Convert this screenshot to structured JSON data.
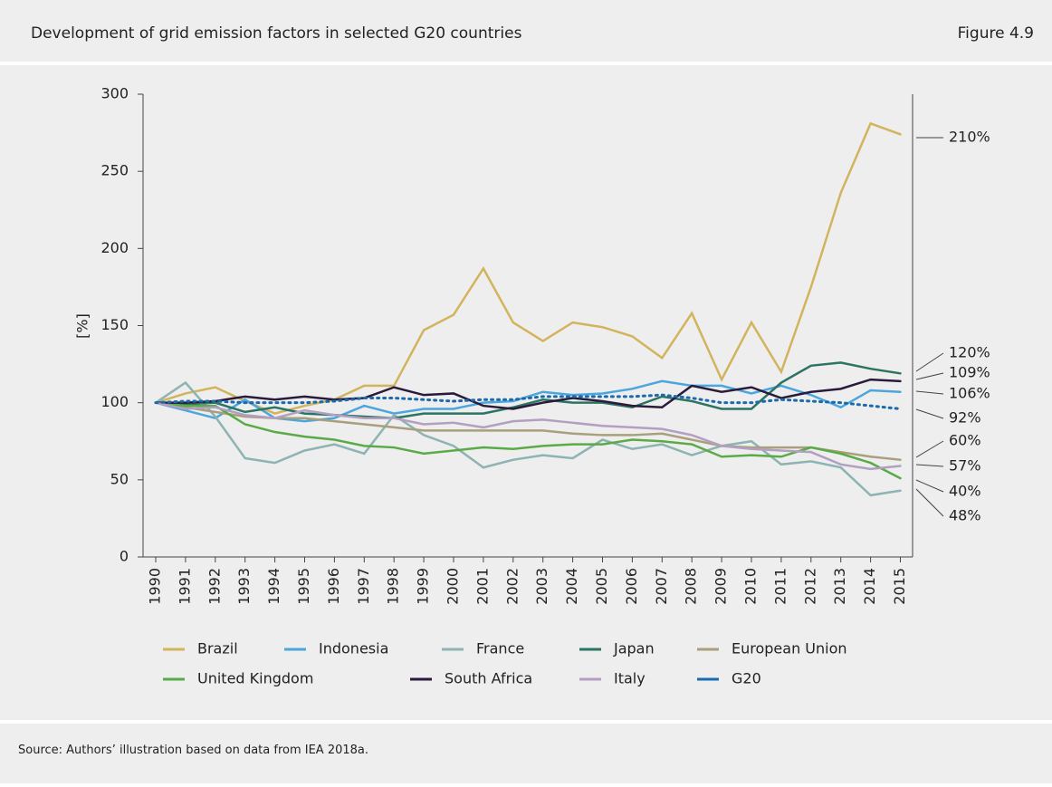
{
  "chart_data": {
    "type": "line",
    "title": "Development of grid emission factors in selected G20 countries",
    "figure_label": "Figure 4.9",
    "y_label": "[%]",
    "source": "Source: Authors’ illustration based on data from IEA 2018a.",
    "categories": [
      "1990",
      "1991",
      "1992",
      "1993",
      "1994",
      "1995",
      "1996",
      "1997",
      "1998",
      "1999",
      "2000",
      "2001",
      "2002",
      "2003",
      "2004",
      "2005",
      "2006",
      "2007",
      "2008",
      "2009",
      "2010",
      "2011",
      "2012",
      "2013",
      "2014",
      "2015"
    ],
    "ylim": [
      0,
      300
    ],
    "yticks": [
      0,
      50,
      100,
      150,
      200,
      250,
      300
    ],
    "annotations": [
      "210%",
      "120%",
      "109%",
      "106%",
      "92%",
      "60%",
      "57%",
      "40%",
      "48%"
    ],
    "series": [
      {
        "name": "Brazil",
        "color": "#d2b45c",
        "values": [
          100,
          106,
          110,
          101,
          93,
          98,
          102,
          111,
          111,
          147,
          157,
          187,
          152,
          140,
          152,
          149,
          143,
          129,
          158,
          115,
          152,
          120,
          175,
          236,
          281,
          274
        ]
      },
      {
        "name": "Indonesia",
        "color": "#4ba6dd",
        "values": [
          100,
          95,
          90,
          102,
          90,
          88,
          90,
          98,
          93,
          96,
          96,
          100,
          101,
          107,
          105,
          106,
          109,
          114,
          111,
          111,
          106,
          111,
          105,
          97,
          108,
          107
        ]
      },
      {
        "name": "France",
        "color": "#8db3b3",
        "values": [
          100,
          113,
          91,
          64,
          61,
          69,
          73,
          67,
          92,
          79,
          72,
          58,
          63,
          66,
          64,
          76,
          70,
          73,
          66,
          72,
          75,
          60,
          62,
          58,
          40,
          43
        ]
      },
      {
        "name": "Japan",
        "color": "#2b7462",
        "values": [
          100,
          99,
          100,
          94,
          97,
          93,
          92,
          91,
          90,
          93,
          93,
          93,
          97,
          102,
          100,
          100,
          97,
          104,
          101,
          96,
          96,
          113,
          124,
          126,
          122,
          119
        ]
      },
      {
        "name": "European Union",
        "color": "#a99f7d",
        "values": [
          100,
          97,
          94,
          91,
          90,
          90,
          88,
          86,
          84,
          82,
          82,
          82,
          82,
          82,
          80,
          79,
          79,
          80,
          76,
          72,
          71,
          71,
          71,
          68,
          65,
          63
        ]
      },
      {
        "name": "United Kingdom",
        "color": "#5aab47",
        "values": [
          100,
          98,
          98,
          86,
          81,
          78,
          76,
          72,
          71,
          67,
          69,
          71,
          70,
          72,
          73,
          73,
          76,
          75,
          73,
          65,
          66,
          65,
          71,
          67,
          61,
          51
        ]
      },
      {
        "name": "South Africa",
        "color": "#2b1b3b",
        "values": [
          100,
          100,
          101,
          104,
          102,
          104,
          102,
          103,
          110,
          105,
          106,
          98,
          96,
          100,
          103,
          101,
          98,
          97,
          111,
          107,
          110,
          103,
          107,
          109,
          115,
          114
        ]
      },
      {
        "name": "Italy",
        "color": "#b29fc2",
        "values": [
          100,
          96,
          97,
          92,
          90,
          95,
          92,
          90,
          90,
          86,
          87,
          84,
          88,
          89,
          87,
          85,
          84,
          83,
          79,
          72,
          70,
          69,
          68,
          60,
          57,
          59
        ]
      },
      {
        "name": "G20",
        "color": "#1b6aae",
        "dotted": true,
        "values": [
          100,
          101,
          101,
          100,
          100,
          100,
          101,
          103,
          103,
          102,
          101,
          102,
          102,
          104,
          104,
          104,
          104,
          105,
          103,
          100,
          100,
          102,
          101,
          100,
          98,
          96
        ]
      }
    ]
  }
}
